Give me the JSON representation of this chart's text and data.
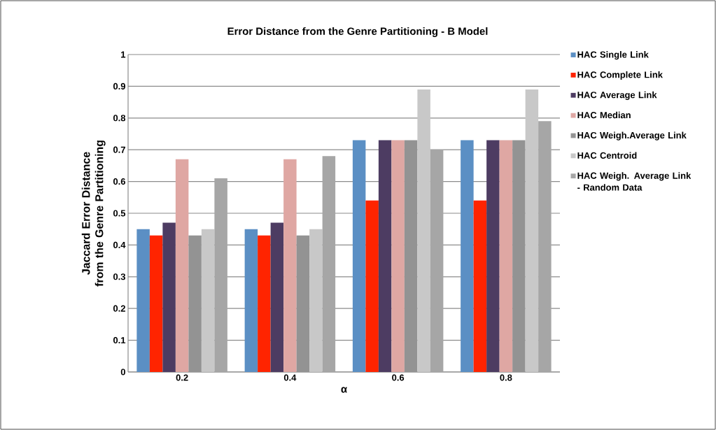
{
  "chart_data": {
    "type": "bar",
    "title": "Error Distance from  the Genre Partitioning  - B Model",
    "xlabel": "α",
    "ylabel": "Jaccard Error Distance from the Genre Partitioning",
    "categories": [
      "0.2",
      "0.4",
      "0.6",
      "0.8"
    ],
    "series": [
      {
        "name": "HAC Single Link",
        "color": "#5b8fc4",
        "values": [
          0.45,
          0.45,
          0.73,
          0.73
        ]
      },
      {
        "name": "HAC Complete Link",
        "color": "#ff2400",
        "values": [
          0.43,
          0.43,
          0.54,
          0.54
        ]
      },
      {
        "name": "HAC Average Link",
        "color": "#4d3c62",
        "values": [
          0.47,
          0.47,
          0.73,
          0.73
        ]
      },
      {
        "name": "HAC Median",
        "color": "#dfa7a3",
        "values": [
          0.67,
          0.67,
          0.73,
          0.73
        ]
      },
      {
        "name": "HAC Weigh.Average Link",
        "color": "#939393",
        "values": [
          0.43,
          0.43,
          0.73,
          0.73
        ]
      },
      {
        "name": "HAC Centroid",
        "color": "#c8c8c8",
        "values": [
          0.45,
          0.45,
          0.89,
          0.89
        ]
      },
      {
        "name": "HAC Weigh. Average Link - Random Data",
        "color": "#a6a6a6",
        "values": [
          0.61,
          0.68,
          0.7,
          0.79
        ]
      }
    ],
    "ylim": [
      0,
      1
    ],
    "yticks": [
      0,
      0.1,
      0.2,
      0.3,
      0.4,
      0.5,
      0.6,
      0.7,
      0.8,
      0.9,
      1
    ],
    "grid": "y",
    "legend": "right"
  }
}
